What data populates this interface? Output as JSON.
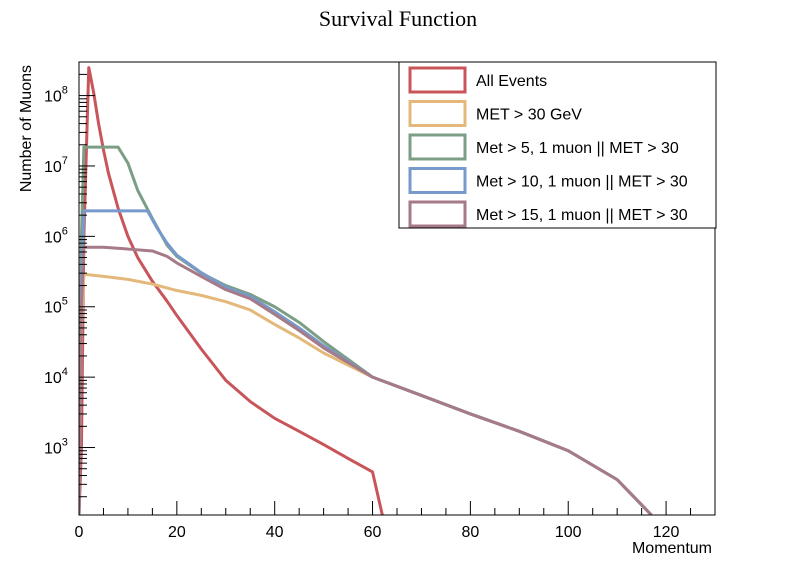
{
  "chart_data": {
    "type": "line",
    "title": "Survival Function",
    "xlabel": "Momentum",
    "ylabel": "Number of Muons",
    "xlim": [
      0,
      130
    ],
    "ylim": [
      110,
      300000000
    ],
    "yscale": "log",
    "grid": false,
    "legend_position": "top-right",
    "x_ticks": [
      0,
      20,
      40,
      60,
      80,
      100,
      120
    ],
    "y_ticks": [
      {
        "base": "10",
        "exp": "3",
        "value": 1000
      },
      {
        "base": "10",
        "exp": "4",
        "value": 10000
      },
      {
        "base": "10",
        "exp": "5",
        "value": 100000
      },
      {
        "base": "10",
        "exp": "6",
        "value": 1000000
      },
      {
        "base": "10",
        "exp": "7",
        "value": 10000000
      },
      {
        "base": "10",
        "exp": "8",
        "value": 100000000
      }
    ],
    "series": [
      {
        "name": "All Events",
        "color": "#c8555a",
        "points": [
          [
            0,
            110
          ],
          [
            0.5,
            1000
          ],
          [
            1,
            1000000
          ],
          [
            2,
            250000000
          ],
          [
            3,
            110000000
          ],
          [
            4,
            40000000
          ],
          [
            5,
            17000000
          ],
          [
            6,
            8000000
          ],
          [
            8,
            2500000
          ],
          [
            10,
            1000000
          ],
          [
            12,
            500000
          ],
          [
            15,
            230000
          ],
          [
            18,
            120000
          ],
          [
            20,
            75000
          ],
          [
            25,
            25000
          ],
          [
            30,
            9000
          ],
          [
            35,
            4500
          ],
          [
            40,
            2600
          ],
          [
            45,
            1700
          ],
          [
            50,
            1100
          ],
          [
            55,
            700
          ],
          [
            60,
            450
          ],
          [
            62,
            110
          ]
        ]
      },
      {
        "name": "MET > 30 GeV",
        "color": "#e4b87a",
        "points": [
          [
            0,
            110
          ],
          [
            0.5,
            50000
          ],
          [
            1,
            290000
          ],
          [
            5,
            270000
          ],
          [
            10,
            245000
          ],
          [
            15,
            210000
          ],
          [
            20,
            170000
          ],
          [
            25,
            145000
          ],
          [
            30,
            118000
          ],
          [
            35,
            90000
          ],
          [
            40,
            56000
          ],
          [
            45,
            36000
          ],
          [
            50,
            22000
          ],
          [
            60,
            10000
          ],
          [
            70,
            5500
          ],
          [
            80,
            3000
          ],
          [
            90,
            1700
          ],
          [
            100,
            900
          ],
          [
            110,
            350
          ],
          [
            117,
            110
          ]
        ]
      },
      {
        "name": "Met > 5, 1 muon || MET > 30",
        "color": "#7c9e84",
        "points": [
          [
            0,
            110
          ],
          [
            0.5,
            1000000
          ],
          [
            1,
            18500000
          ],
          [
            8,
            18500000
          ],
          [
            10,
            11000000
          ],
          [
            12,
            4500000
          ],
          [
            15,
            1800000
          ],
          [
            18,
            750000
          ],
          [
            20,
            520000
          ],
          [
            25,
            300000
          ],
          [
            30,
            200000
          ],
          [
            35,
            150000
          ],
          [
            40,
            100000
          ],
          [
            45,
            60000
          ],
          [
            50,
            32000
          ],
          [
            60,
            10000
          ],
          [
            70,
            5500
          ],
          [
            80,
            3000
          ],
          [
            90,
            1700
          ],
          [
            100,
            900
          ],
          [
            110,
            350
          ],
          [
            117,
            110
          ]
        ]
      },
      {
        "name": "Met > 10, 1 muon || MET > 30",
        "color": "#7799cc",
        "points": [
          [
            0,
            110
          ],
          [
            0.5,
            200000
          ],
          [
            1,
            2300000
          ],
          [
            14,
            2300000
          ],
          [
            16,
            1300000
          ],
          [
            18,
            800000
          ],
          [
            20,
            540000
          ],
          [
            25,
            305000
          ],
          [
            30,
            190000
          ],
          [
            35,
            140000
          ],
          [
            40,
            85000
          ],
          [
            45,
            50000
          ],
          [
            50,
            28000
          ],
          [
            60,
            10000
          ],
          [
            70,
            5500
          ],
          [
            80,
            3000
          ],
          [
            90,
            1700
          ],
          [
            100,
            900
          ],
          [
            110,
            350
          ],
          [
            117,
            110
          ]
        ]
      },
      {
        "name": "Met > 15, 1 muon || MET > 30",
        "color": "#a67a86",
        "points": [
          [
            0,
            110
          ],
          [
            0.5,
            100000
          ],
          [
            1,
            700000
          ],
          [
            5,
            700000
          ],
          [
            10,
            660000
          ],
          [
            15,
            620000
          ],
          [
            18,
            520000
          ],
          [
            20,
            420000
          ],
          [
            25,
            270000
          ],
          [
            30,
            175000
          ],
          [
            35,
            130000
          ],
          [
            40,
            78000
          ],
          [
            45,
            46000
          ],
          [
            50,
            26000
          ],
          [
            60,
            10000
          ],
          [
            70,
            5500
          ],
          [
            80,
            3000
          ],
          [
            90,
            1700
          ],
          [
            100,
            900
          ],
          [
            110,
            350
          ],
          [
            117,
            110
          ]
        ]
      }
    ]
  }
}
